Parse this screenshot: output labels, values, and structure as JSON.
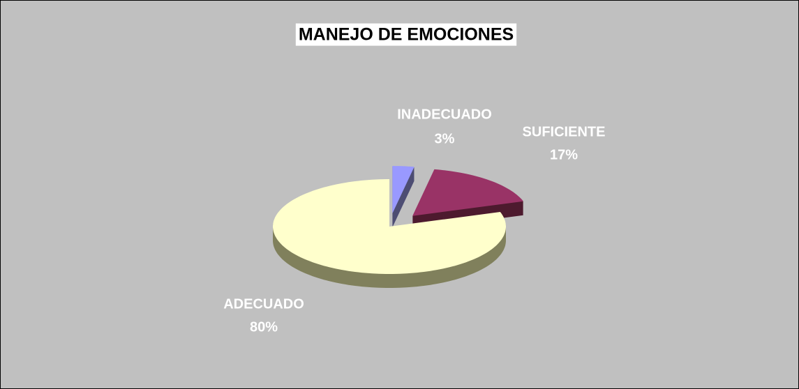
{
  "chart_data": {
    "type": "pie",
    "title": "MANEJO DE EMOCIONES",
    "categories": [
      "INADECUADO",
      "SUFICIENTE",
      "ADECUADO"
    ],
    "values": [
      3,
      17,
      80
    ],
    "value_labels": [
      "3%",
      "17%",
      "80%"
    ],
    "colors": [
      "#9999ff",
      "#993366",
      "#ffffcc"
    ]
  }
}
